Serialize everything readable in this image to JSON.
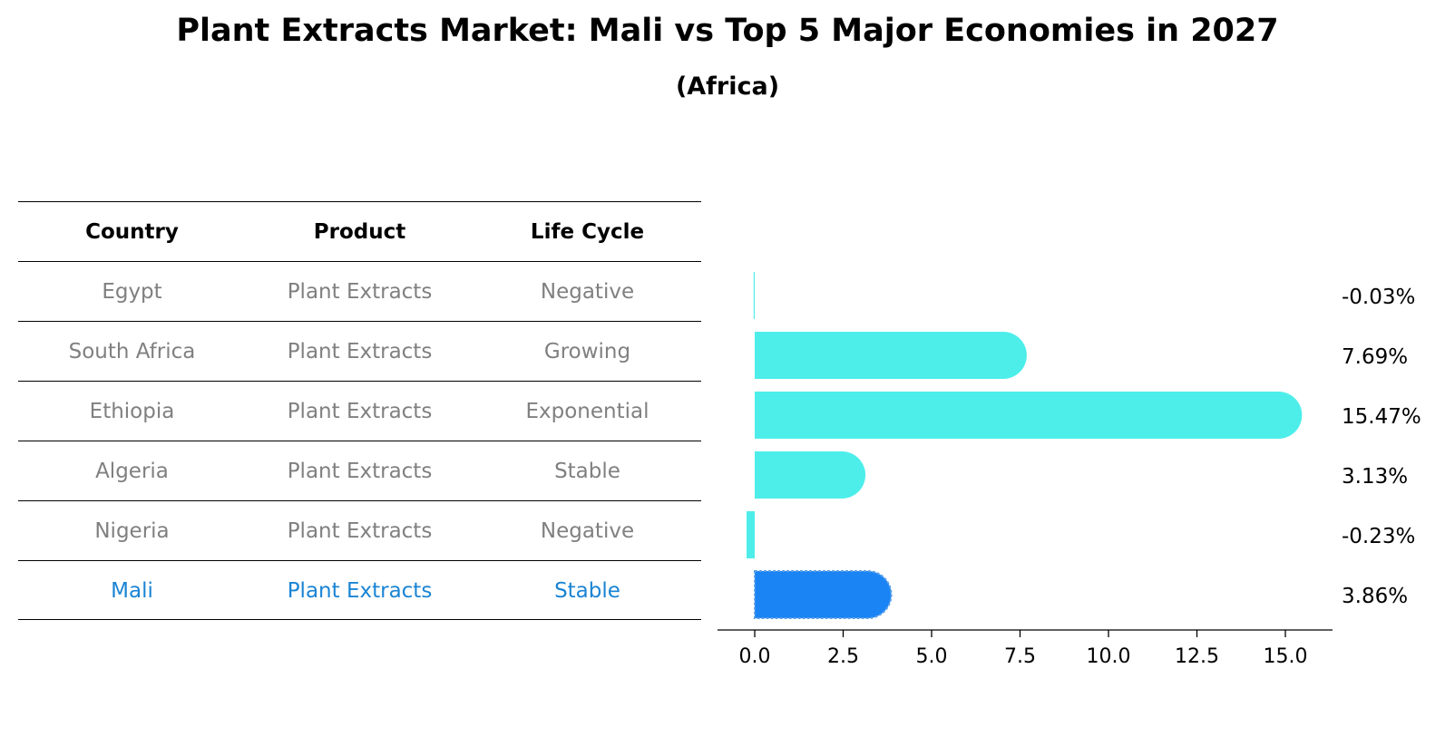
{
  "title": "Plant Extracts Market: Mali vs Top 5 Major Economies in 2027",
  "subtitle": "(Africa)",
  "table": {
    "headers": [
      "Country",
      "Product",
      "Life Cycle"
    ],
    "rows": [
      [
        "Egypt",
        "Plant Extracts",
        "Negative"
      ],
      [
        "South Africa",
        "Plant Extracts",
        "Growing"
      ],
      [
        "Ethiopia",
        "Plant Extracts",
        "Exponential"
      ],
      [
        "Algeria",
        "Plant Extracts",
        "Stable"
      ],
      [
        "Nigeria",
        "Plant Extracts",
        "Negative"
      ],
      [
        "Mali",
        "Plant Extracts",
        "Stable"
      ]
    ],
    "highlight_row": 5
  },
  "chart_data": {
    "type": "bar",
    "orientation": "horizontal",
    "categories": [
      "Egypt",
      "South Africa",
      "Ethiopia",
      "Algeria",
      "Nigeria",
      "Mali"
    ],
    "values": [
      -0.03,
      7.69,
      15.47,
      3.13,
      -0.23,
      3.86
    ],
    "labels": [
      "-0.03%",
      "7.69%",
      "15.47%",
      "3.13%",
      "-0.23%",
      "3.86%"
    ],
    "xlim": [
      -1.0,
      16.3
    ],
    "xticks": [
      "0.0",
      "2.5",
      "5.0",
      "7.5",
      "10.0",
      "12.5",
      "15.0"
    ],
    "highlight_index": 5,
    "colors": {
      "bar": "#4deeea",
      "highlight": "#1a84f5",
      "label": "#000000"
    }
  }
}
